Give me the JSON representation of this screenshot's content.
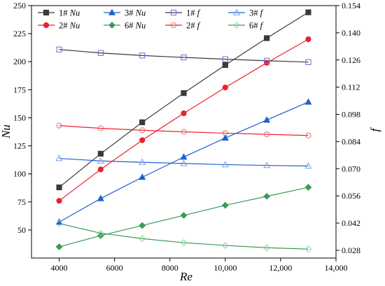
{
  "chart_data": {
    "type": "line",
    "xlabel": "Re",
    "ylabel_left": "Nu",
    "ylabel_right": "f",
    "xlim": [
      3000,
      14000
    ],
    "ylim_left": [
      25,
      250
    ],
    "ylim_right": [
      0.024,
      0.154
    ],
    "x_ticks": [
      4000,
      6000,
      8000,
      10000,
      12000,
      14000
    ],
    "x_tick_labels": [
      "4000",
      "6000",
      "8000",
      "10,000",
      "12,000",
      "14,000"
    ],
    "y_left_ticks": [
      50,
      75,
      100,
      125,
      150,
      175,
      200,
      225,
      250
    ],
    "y_left_tick_labels": [
      "50",
      "75",
      "100",
      "125",
      "150",
      "175",
      "200",
      "225",
      "250"
    ],
    "y_right_ticks": [
      0.028,
      0.042,
      0.056,
      0.07,
      0.084,
      0.098,
      0.112,
      0.126,
      0.14,
      0.154
    ],
    "y_right_tick_labels": [
      "0.028",
      "0.042",
      "0.056",
      "0.070",
      "0.084",
      "0.098",
      "0.112",
      "0.126",
      "0.140",
      "0.154"
    ],
    "grid": false,
    "legend_position": "top",
    "x": [
      4000,
      5500,
      7000,
      8500,
      10000,
      11500,
      13000
    ],
    "series": [
      {
        "name": "1# Nu",
        "label_prefix": "1# ",
        "label_var": "Nu",
        "axis": "left",
        "color": "#3a3a3a",
        "marker": "square",
        "filled": true,
        "values": [
          88,
          118,
          146,
          172,
          197,
          221,
          244
        ]
      },
      {
        "name": "2# Nu",
        "label_prefix": "2# ",
        "label_var": "Nu",
        "axis": "left",
        "color": "#e8232a",
        "marker": "circle",
        "filled": true,
        "values": [
          76,
          104,
          130,
          154,
          177,
          199,
          220
        ]
      },
      {
        "name": "3# Nu",
        "label_prefix": "3# ",
        "label_var": "Nu",
        "axis": "left",
        "color": "#1f5fd1",
        "marker": "triangle",
        "filled": true,
        "values": [
          57,
          78,
          97,
          115,
          132,
          148,
          164
        ]
      },
      {
        "name": "6# Nu",
        "label_prefix": "6# ",
        "label_var": "Nu",
        "axis": "left",
        "color": "#3a9a56",
        "marker": "diamond",
        "filled": true,
        "values": [
          35,
          45,
          54,
          63,
          72,
          80,
          88
        ]
      },
      {
        "name": "1# f",
        "label_prefix": "1# ",
        "label_var": "f",
        "axis": "right",
        "color": "#6a6ad8",
        "line_color": "#3a3a3a",
        "marker": "square",
        "filled": false,
        "values": [
          0.1314,
          0.1296,
          0.1283,
          0.1273,
          0.1264,
          0.1256,
          0.1249
        ]
      },
      {
        "name": "2# f",
        "label_prefix": "2# ",
        "label_var": "f",
        "axis": "right",
        "color": "#f06a6a",
        "line_color": "#e8232a",
        "marker": "circle",
        "filled": false,
        "values": [
          0.0922,
          0.0908,
          0.0898,
          0.089,
          0.0883,
          0.0877,
          0.0871
        ]
      },
      {
        "name": "3# f",
        "label_prefix": "3# ",
        "label_var": "f",
        "axis": "right",
        "color": "#7aa0e8",
        "line_color": "#1f5fd1",
        "marker": "triangle",
        "filled": false,
        "values": [
          0.0753,
          0.074,
          0.0733,
          0.0727,
          0.0721,
          0.0717,
          0.0714
        ]
      },
      {
        "name": "6# f",
        "label_prefix": "6# ",
        "label_var": "f",
        "axis": "right",
        "color": "#8ad0a0",
        "line_color": "#3a9a56",
        "marker": "diamond",
        "filled": false,
        "values": [
          0.0418,
          0.0368,
          0.034,
          0.0319,
          0.0305,
          0.0293,
          0.0286
        ]
      }
    ]
  }
}
